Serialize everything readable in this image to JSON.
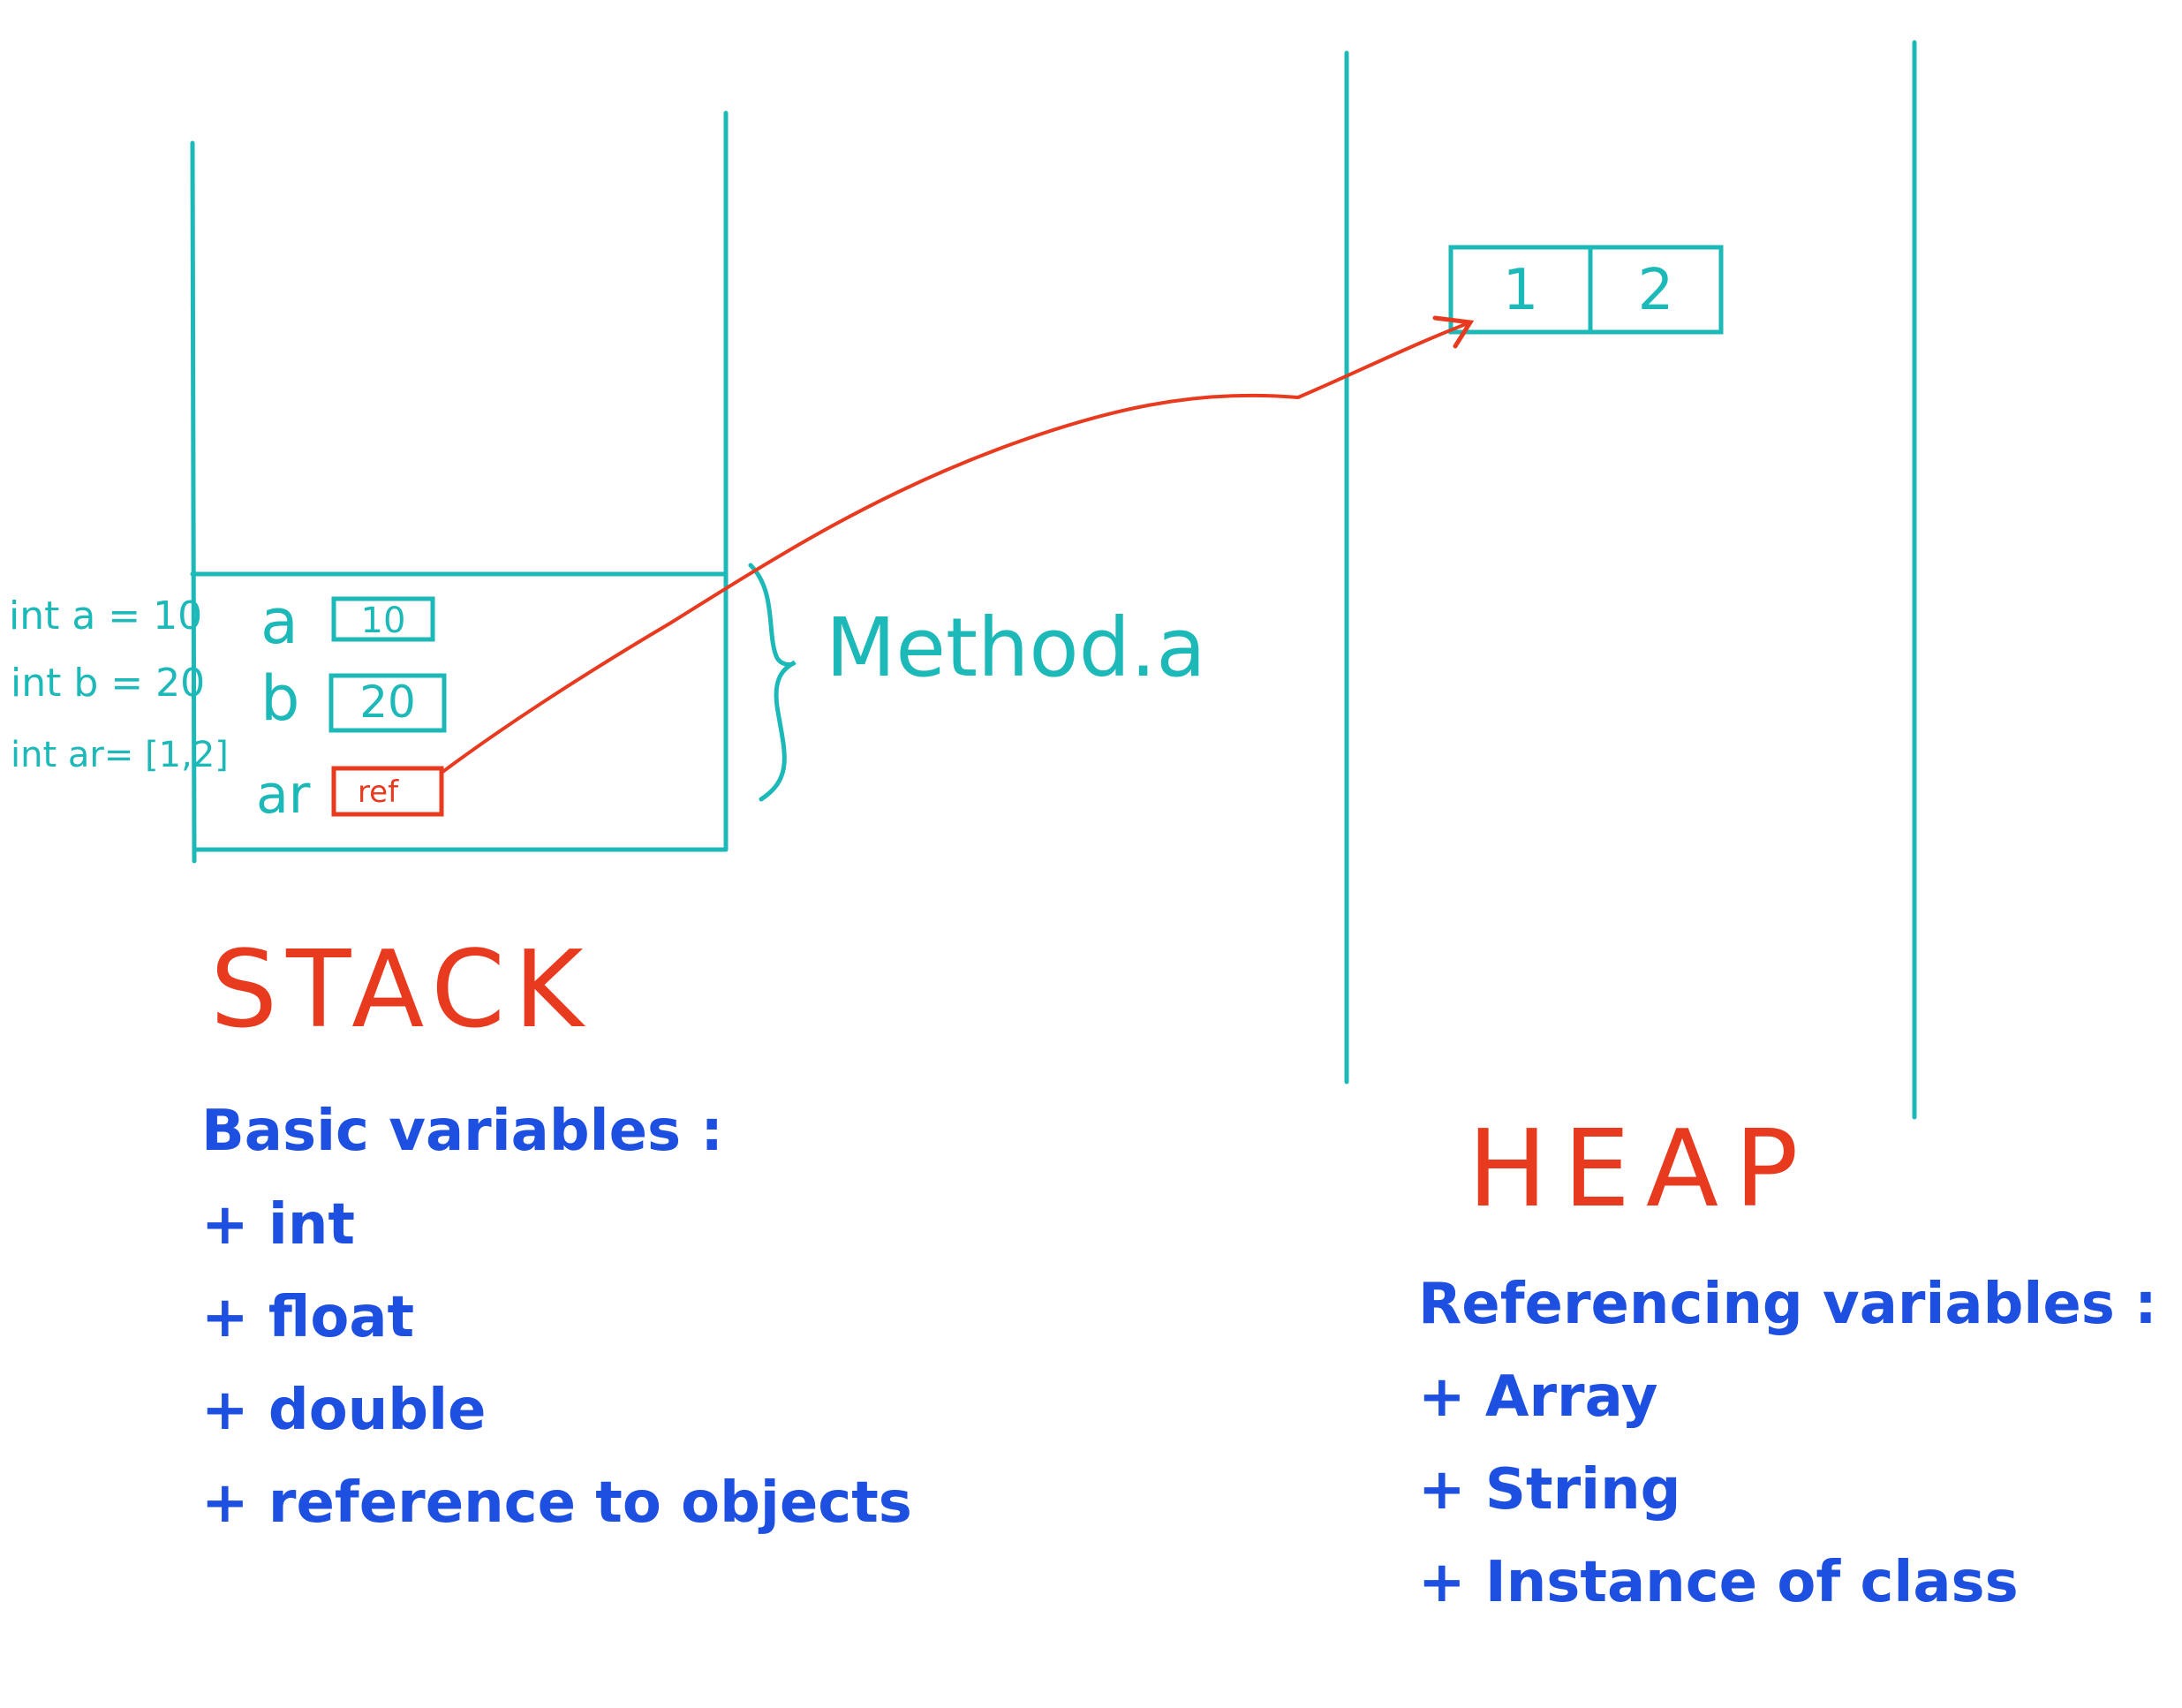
{
  "colors": {
    "teal": "#1db8b8",
    "red": "#e83a1e",
    "blue": "#1d4fe0"
  },
  "stack": {
    "title": "STACK",
    "frame_label": "Method.a",
    "notes": [
      "int a = 10",
      "int b = 20",
      "int ar= [1,2]"
    ],
    "vars": [
      {
        "name": "a",
        "value": "10"
      },
      {
        "name": "b",
        "value": "20"
      },
      {
        "name": "ar",
        "value": "ref"
      }
    ],
    "list_heading": "Basic variables :",
    "list_items": [
      "+ int",
      "+ float",
      "+ double",
      "+ reference to objects"
    ]
  },
  "heap": {
    "title": "HEAP",
    "array_cells": [
      "1",
      "2"
    ],
    "list_heading": "Referencing variables :",
    "list_items": [
      "+ Array",
      "+ String",
      "+ Instance of class"
    ]
  }
}
